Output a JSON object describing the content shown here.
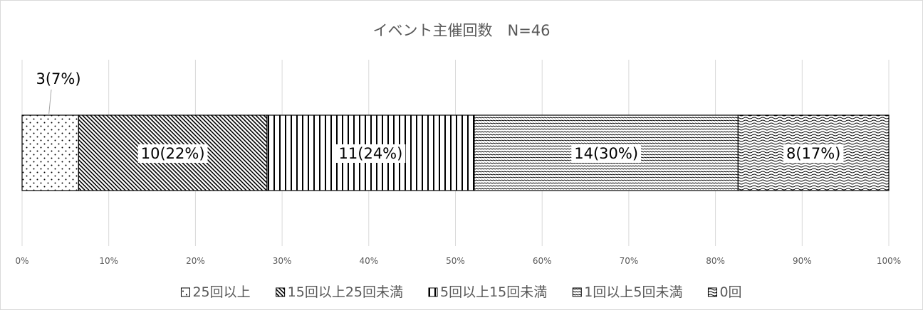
{
  "chart_data": {
    "type": "bar",
    "orientation": "horizontal",
    "stacked": "percent",
    "title": "イベント主催回数　N=46",
    "xlabel": "",
    "ylabel": "",
    "xlim": [
      0,
      100
    ],
    "x_ticks": [
      "0%",
      "10%",
      "20%",
      "30%",
      "40%",
      "50%",
      "60%",
      "70%",
      "80%",
      "90%",
      "100%"
    ],
    "grid": true,
    "legend_position": "bottom",
    "series": [
      {
        "name": "25回以上",
        "value": 3,
        "percent": 6.5,
        "label": "3(7%)",
        "pattern": "dots"
      },
      {
        "name": "15回以上25回未満",
        "value": 10,
        "percent": 21.7,
        "label": "10(22%)",
        "pattern": "diagonal-lines"
      },
      {
        "name": "5回以上15回未満",
        "value": 11,
        "percent": 23.9,
        "label": "11(24%)",
        "pattern": "vertical-lines"
      },
      {
        "name": "1回以上5回未満",
        "value": 14,
        "percent": 30.4,
        "label": "14(30%)",
        "pattern": "horizontal-dashes"
      },
      {
        "name": "0回",
        "value": 8,
        "percent": 17.4,
        "label": "8(17%)",
        "pattern": "waves"
      }
    ]
  }
}
